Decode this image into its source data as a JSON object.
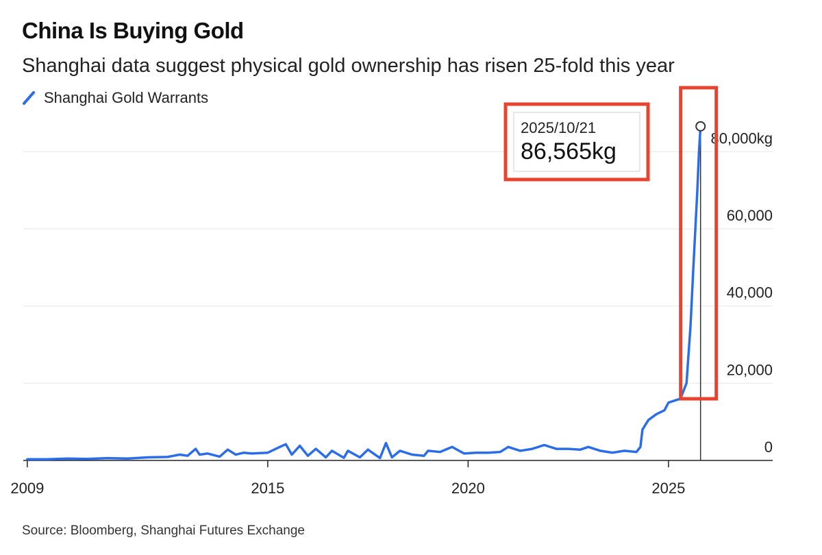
{
  "chart_data": {
    "type": "line",
    "title": "China Is Buying Gold",
    "subtitle": "Shanghai data suggest physical gold ownership has risen 25-fold this year",
    "source": "Source: Bloomberg, Shanghai Futures Exchange",
    "series": [
      {
        "name": "Shanghai Gold Warrants",
        "color": "#2b6de8",
        "x": [
          2009.0,
          2009.5,
          2010.0,
          2010.5,
          2011.0,
          2011.5,
          2012.0,
          2012.5,
          2012.8,
          2013.0,
          2013.2,
          2013.3,
          2013.5,
          2013.8,
          2014.0,
          2014.2,
          2014.4,
          2014.6,
          2015.0,
          2015.3,
          2015.45,
          2015.6,
          2015.8,
          2016.0,
          2016.2,
          2016.45,
          2016.6,
          2016.9,
          2017.0,
          2017.3,
          2017.5,
          2017.8,
          2017.95,
          2018.1,
          2018.3,
          2018.6,
          2018.9,
          2019.0,
          2019.3,
          2019.6,
          2019.9,
          2020.2,
          2020.5,
          2020.8,
          2021.0,
          2021.3,
          2021.6,
          2021.9,
          2022.2,
          2022.5,
          2022.8,
          2023.0,
          2023.3,
          2023.6,
          2023.9,
          2024.2,
          2024.3,
          2024.35,
          2024.5,
          2024.7,
          2024.9,
          2025.0,
          2025.15,
          2025.3,
          2025.45,
          2025.55,
          2025.62,
          2025.68,
          2025.72,
          2025.76,
          2025.8
        ],
        "values": [
          300,
          300,
          500,
          400,
          600,
          500,
          800,
          900,
          1500,
          1200,
          3000,
          1500,
          1800,
          1000,
          2800,
          1500,
          2000,
          1800,
          2000,
          3500,
          4200,
          1500,
          3800,
          1200,
          3000,
          800,
          2500,
          700,
          2500,
          800,
          2800,
          600,
          4500,
          800,
          2500,
          1500,
          1200,
          2500,
          2200,
          3500,
          1800,
          2000,
          2000,
          2200,
          3500,
          2500,
          3000,
          4000,
          3000,
          3000,
          2800,
          3500,
          2500,
          2000,
          2500,
          2200,
          3500,
          8000,
          10500,
          12000,
          13000,
          15000,
          15500,
          16000,
          20000,
          35000,
          50000,
          62000,
          70000,
          80000,
          86565
        ]
      }
    ],
    "xlim": [
      2008.9,
      2027.6
    ],
    "ylim": [
      0,
      90000
    ],
    "x_ticks": [
      {
        "value": 2009,
        "label": "2009"
      },
      {
        "value": 2015,
        "label": "2015"
      },
      {
        "value": 2020,
        "label": "2020"
      },
      {
        "value": 2025,
        "label": "2025"
      }
    ],
    "y_ticks": [
      {
        "value": 0,
        "label": "0"
      },
      {
        "value": 20000,
        "label": "20,000"
      },
      {
        "value": 40000,
        "label": "40,000"
      },
      {
        "value": 60000,
        "label": "60,000"
      },
      {
        "value": 80000,
        "label": "80,000kg"
      }
    ],
    "grid": true,
    "legend_position": "top-left",
    "annotation": {
      "x": 2025.8,
      "y": 86565,
      "date": "2025/10/21",
      "value": "86,565kg",
      "highlight_color": "#e8432f"
    }
  }
}
